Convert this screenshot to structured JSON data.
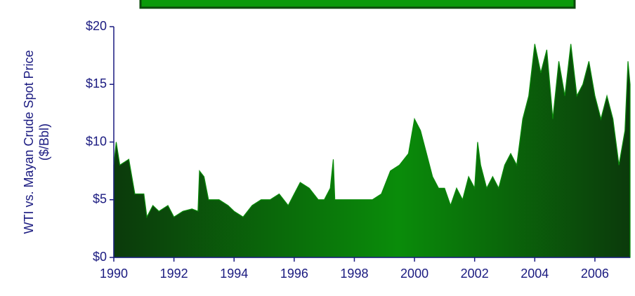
{
  "chart_data": {
    "type": "area",
    "y_label_lines": [
      "WTI vs. Mayan Crude Spot Price",
      "($/Bbl)"
    ],
    "x": [
      1990.0,
      1990.08,
      1990.2,
      1990.5,
      1990.7,
      1991.0,
      1991.1,
      1991.3,
      1991.5,
      1991.8,
      1992.0,
      1992.3,
      1992.6,
      1992.8,
      1992.85,
      1993.0,
      1993.15,
      1993.5,
      1993.8,
      1994.0,
      1994.3,
      1994.6,
      1994.9,
      1995.2,
      1995.5,
      1995.8,
      1996.0,
      1996.2,
      1996.5,
      1996.8,
      1997.0,
      1997.2,
      1997.3,
      1997.35,
      1997.7,
      1998.0,
      1998.3,
      1998.6,
      1998.9,
      1999.2,
      1999.5,
      1999.8,
      2000.0,
      2000.2,
      2000.4,
      2000.6,
      2000.8,
      2001.0,
      2001.2,
      2001.4,
      2001.6,
      2001.8,
      2002.0,
      2002.1,
      2002.2,
      2002.4,
      2002.6,
      2002.8,
      2003.0,
      2003.2,
      2003.4,
      2003.6,
      2003.8,
      2004.0,
      2004.2,
      2004.4,
      2004.6,
      2004.8,
      2005.0,
      2005.2,
      2005.4,
      2005.6,
      2005.8,
      2006.0,
      2006.2,
      2006.4,
      2006.6,
      2006.8,
      2007.0,
      2007.1,
      2007.17
    ],
    "series": [
      {
        "color": "#0a8a0a",
        "values": [
          8,
          10,
          8,
          8.5,
          5.5,
          5.5,
          3.5,
          4.5,
          4,
          4.5,
          3.5,
          4,
          4.2,
          4,
          7.5,
          7,
          5,
          5,
          4.5,
          4,
          3.5,
          4.5,
          5,
          5,
          5.5,
          4.5,
          5.5,
          6.5,
          6,
          5,
          5,
          6,
          8.5,
          5,
          5,
          5,
          5,
          5,
          5.5,
          7.5,
          8,
          9,
          12,
          11,
          9,
          7,
          6,
          6,
          4.5,
          6,
          5,
          7,
          6,
          10,
          8,
          6,
          7,
          6,
          8,
          9,
          8,
          12,
          14,
          18.5,
          16,
          18,
          12,
          17,
          14,
          18.5,
          14,
          15,
          17,
          14,
          12,
          14,
          12,
          8,
          11,
          17,
          15
        ]
      }
    ],
    "xlim": [
      1990,
      2007.17
    ],
    "xticks": [
      1990,
      1992,
      1994,
      1996,
      1998,
      2000,
      2002,
      2004,
      2006
    ],
    "ylim": [
      0,
      20
    ],
    "yticks": [
      {
        "value": 0,
        "label": "$0"
      },
      {
        "value": 5,
        "label": "$5"
      },
      {
        "value": 10,
        "label": "$10"
      },
      {
        "value": 15,
        "label": "$15"
      },
      {
        "value": 20,
        "label": "$20"
      }
    ]
  }
}
